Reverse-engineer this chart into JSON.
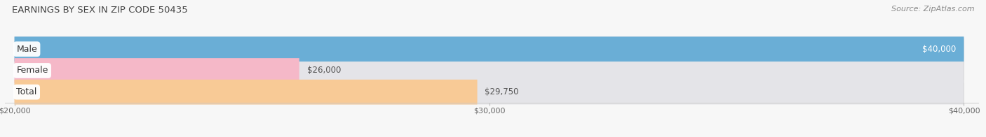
{
  "title": "EARNINGS BY SEX IN ZIP CODE 50435",
  "source": "Source: ZipAtlas.com",
  "categories": [
    "Male",
    "Female",
    "Total"
  ],
  "values": [
    40000,
    26000,
    29750
  ],
  "bar_colors": [
    "#6aaed6",
    "#f5b8c8",
    "#f8ca96"
  ],
  "bar_bg_color": "#e4e4e8",
  "label_values": [
    "$40,000",
    "$26,000",
    "$29,750"
  ],
  "xmin": 20000,
  "xmax": 40000,
  "xticks": [
    20000,
    30000,
    40000
  ],
  "xtick_labels": [
    "$20,000",
    "$30,000",
    "$40,000"
  ],
  "figsize": [
    14.06,
    1.96
  ],
  "dpi": 100,
  "bg_color": "#f7f7f7",
  "bar_height": 0.58,
  "title_fontsize": 9.5,
  "source_fontsize": 8,
  "label_fontsize": 8.5,
  "cat_fontsize": 9
}
